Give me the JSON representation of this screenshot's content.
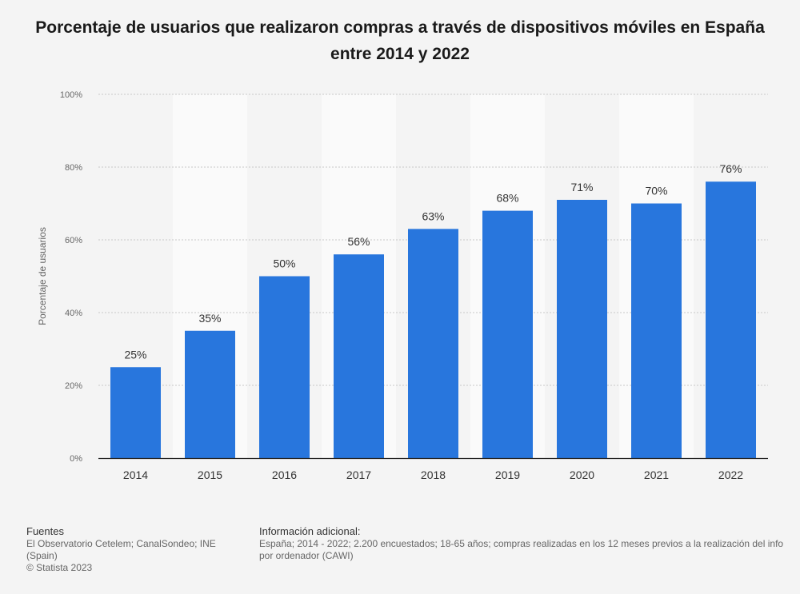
{
  "chart_data": {
    "type": "bar",
    "title": "Porcentaje de usuarios que realizaron compras a través de dispositivos móviles en España entre 2014 y 2022",
    "xlabel": "",
    "ylabel": "Porcentaje de usuarios",
    "categories": [
      "2014",
      "2015",
      "2016",
      "2017",
      "2018",
      "2019",
      "2020",
      "2021",
      "2022"
    ],
    "values": [
      25,
      35,
      50,
      56,
      63,
      68,
      71,
      70,
      76
    ],
    "data_labels": [
      "25%",
      "35%",
      "50%",
      "56%",
      "63%",
      "68%",
      "71%",
      "70%",
      "76%"
    ],
    "ylim": [
      0,
      100
    ],
    "yticks": [
      0,
      20,
      40,
      60,
      80,
      100
    ],
    "ytick_labels": [
      "0%",
      "20%",
      "40%",
      "60%",
      "80%",
      "100%"
    ],
    "grid": true,
    "colors": {
      "bar": "#2876dd",
      "band": "#fafafa",
      "grid": "#c8c8c8"
    }
  },
  "footer": {
    "sources_heading": "Fuentes",
    "sources_line1": "El Observatorio Cetelem; CanalSondeo; INE",
    "sources_line2": "(Spain)",
    "copyright": "© Statista 2023",
    "info_heading": "Información adicional:",
    "info_line1": "España; 2014 - 2022; 2.200 encuestados; 18-65 años; compras realizadas en los 12 meses previos a la realización del info",
    "info_line2": "por ordenador (CAWI)"
  }
}
